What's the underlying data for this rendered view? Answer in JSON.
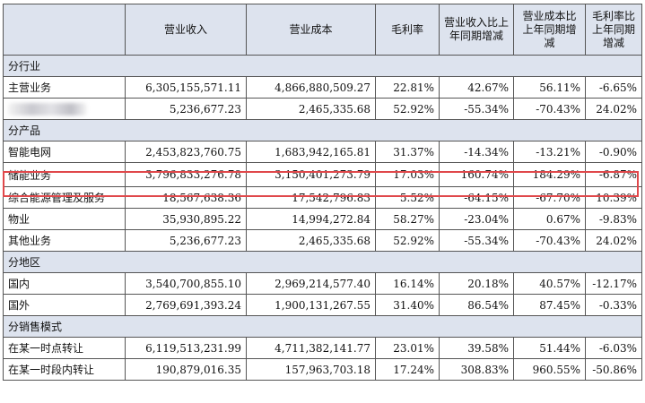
{
  "headers": [
    "",
    "营业收入",
    "营业成本",
    "毛利率",
    "营业收入比上年同期增减",
    "营业成本比上年同期增减",
    "毛利率比上年同期增减"
  ],
  "sections": {
    "industry": "分行业",
    "product": "分产品",
    "region": "分地区",
    "sales_mode": "分销售模式"
  },
  "rows": {
    "main_business": [
      "主营业务",
      "6,305,155,571.11",
      "4,866,880,509.27",
      "22.81%",
      "42.67%",
      "56.11%",
      "-6.65%"
    ],
    "other_industry": [
      "",
      "5,236,677.23",
      "2,465,335.68",
      "52.92%",
      "-55.34%",
      "-70.43%",
      "24.02%"
    ],
    "smart_grid": [
      "智能电网",
      "2,453,823,760.75",
      "1,683,942,165.81",
      "31.37%",
      "-14.34%",
      "-13.21%",
      "-0.90%"
    ],
    "energy_storage": [
      "储能业务",
      "3,796,833,276.78",
      "3,150,401,273.79",
      "17.03%",
      "160.74%",
      "184.29%",
      "-6.87%"
    ],
    "integrated_energy": [
      "综合能源管理及服务",
      "18,567,638.36",
      "17,542,796.83",
      "5.52%",
      "-64.15%",
      "-67.70%",
      "10.39%"
    ],
    "property": [
      "物业",
      "35,930,895.22",
      "14,994,272.84",
      "58.27%",
      "-23.04%",
      "0.67%",
      "-9.83%"
    ],
    "other_business": [
      "其他业务",
      "5,236,677.23",
      "2,465,335.68",
      "52.92%",
      "-55.34%",
      "-70.43%",
      "24.02%"
    ],
    "domestic": [
      "国内",
      "3,540,700,855.10",
      "2,969,214,577.40",
      "16.14%",
      "20.18%",
      "40.57%",
      "-12.17%"
    ],
    "overseas": [
      "国外",
      "2,769,691,393.24",
      "1,900,131,267.55",
      "31.40%",
      "86.54%",
      "87.45%",
      "-0.33%"
    ],
    "point_in_time": [
      "在某一时点转让",
      "6,119,513,231.99",
      "4,711,382,141.77",
      "23.01%",
      "39.58%",
      "51.44%",
      "-6.03%"
    ],
    "over_time": [
      "在某一时段内转让",
      "190,879,016.35",
      "157,963,703.18",
      "17.24%",
      "308.83%",
      "960.55%",
      "-50.86%"
    ]
  },
  "colors": {
    "header_bg": "#dde3ee",
    "highlight_border": "#e0484b"
  }
}
